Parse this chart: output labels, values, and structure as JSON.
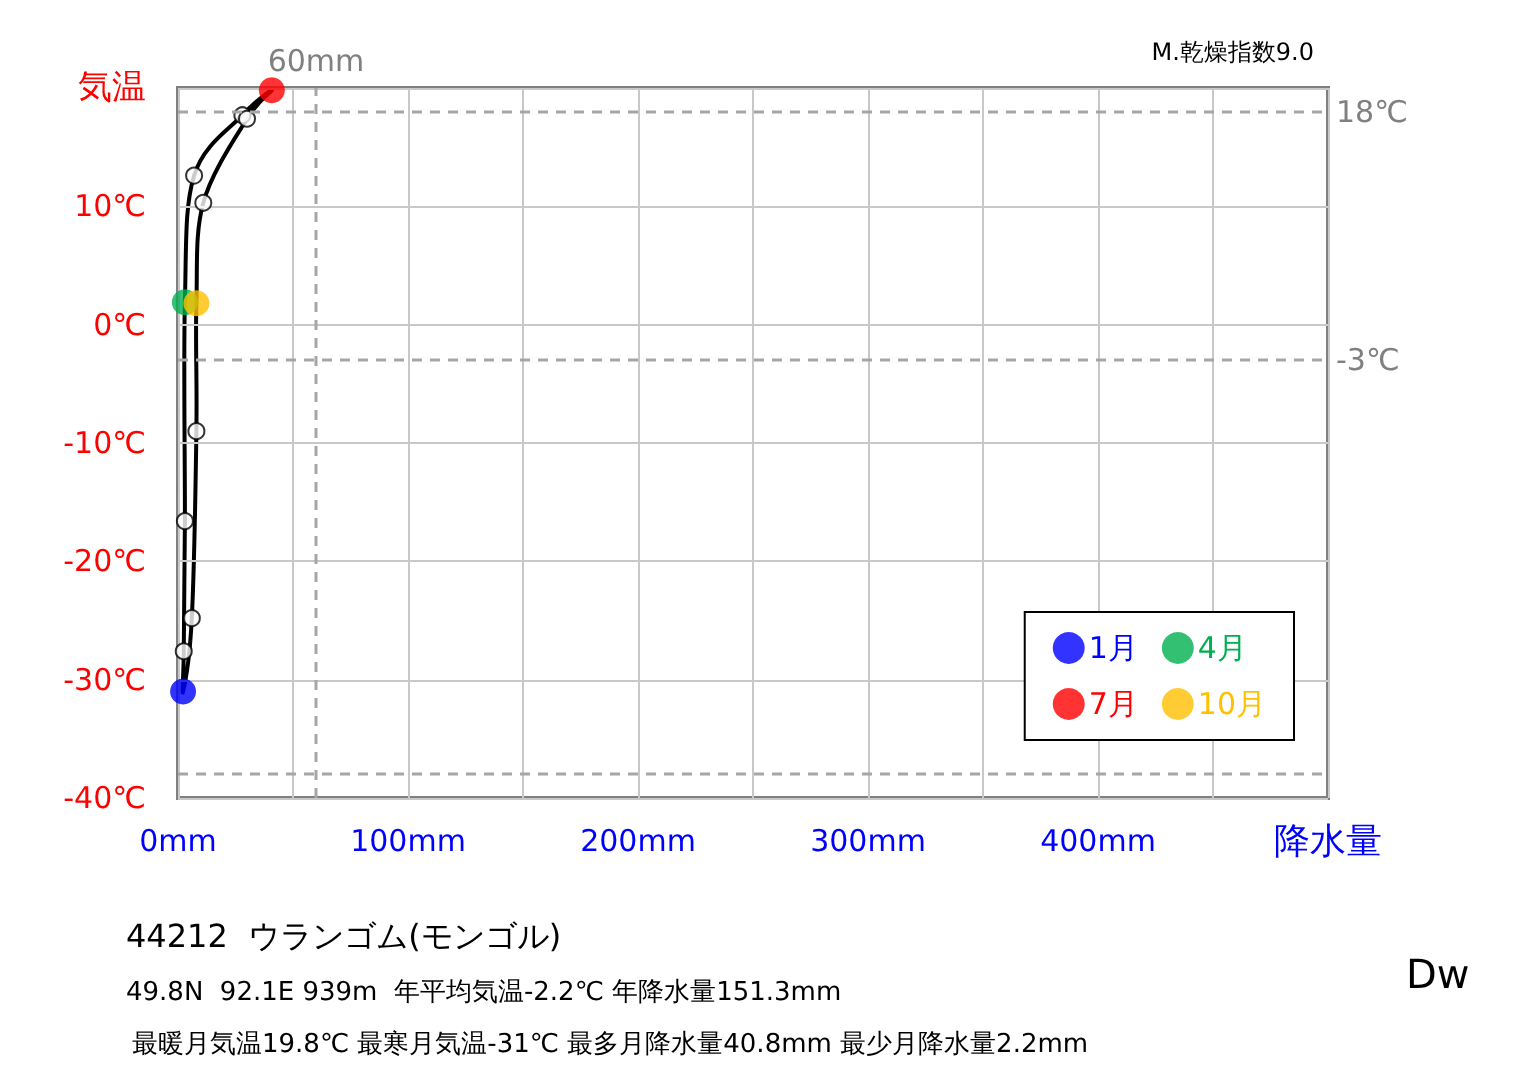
{
  "chart_data": {
    "type": "scatter",
    "title": "44212  ウランゴム(モンゴル)",
    "subtitle": "49.8N  92.1E 939m  年平均気温-2.2℃ 年降水量151.3mm",
    "annotations": [
      "最暖月気温19.8℃ 最寒月気温-31℃ 最多月降水量40.8mm 最少月降水量2.2mm",
      "M.乾燥指数9.0",
      "Dw"
    ],
    "xlabel": "降水量",
    "ylabel": "気温",
    "xlim": [
      0,
      500
    ],
    "xticks": [
      {
        "value": 0,
        "label": "0mm"
      },
      {
        "value": 50,
        "label": null
      },
      {
        "value": 100,
        "label": "100mm"
      },
      {
        "value": 150,
        "label": null
      },
      {
        "value": 200,
        "label": "200mm"
      },
      {
        "value": 250,
        "label": null
      },
      {
        "value": 300,
        "label": "300mm"
      },
      {
        "value": 350,
        "label": null
      },
      {
        "value": 400,
        "label": "400mm"
      },
      {
        "value": 450,
        "label": null
      },
      {
        "value": 500,
        "label": null
      }
    ],
    "ylim": [
      -40,
      20
    ],
    "yticks": [
      {
        "value": -40,
        "label": "-40℃"
      },
      {
        "value": -30,
        "label": "-30℃"
      },
      {
        "value": -20,
        "label": "-20℃"
      },
      {
        "value": -10,
        "label": "-10℃"
      },
      {
        "value": 0,
        "label": "0℃"
      },
      {
        "value": 10,
        "label": "10℃"
      },
      {
        "value": 20,
        "label": null
      }
    ],
    "grid": true,
    "legend": "bottom right",
    "marker": "circle",
    "series": [
      {
        "name": "1月",
        "color": "#0000ff",
        "x": [
          2.2
        ],
        "values": [
          -31
        ]
      },
      {
        "color": "#ffffff",
        "x": [
          2.5
        ],
        "values": [
          -27.6
        ]
      },
      {
        "color": "#ffffff",
        "x": [
          3
        ],
        "values": [
          -16.6
        ]
      },
      {
        "name": "4月",
        "color": "#00b050",
        "x": [
          3
        ],
        "values": [
          1.9
        ]
      },
      {
        "color": "#ffffff",
        "x": [
          7
        ],
        "values": [
          12.6
        ]
      },
      {
        "color": "#ffffff",
        "x": [
          28
        ],
        "values": [
          17.7
        ]
      },
      {
        "name": "7月",
        "color": "#ff0000",
        "x": [
          40.8
        ],
        "values": [
          19.8
        ]
      },
      {
        "color": "#ffffff",
        "x": [
          30
        ],
        "values": [
          17.4
        ]
      },
      {
        "color": "#ffffff",
        "x": [
          11
        ],
        "values": [
          10.3
        ]
      },
      {
        "name": "10月",
        "color": "#ffc000",
        "x": [
          8
        ],
        "values": [
          1.8
        ]
      },
      {
        "color": "#ffffff",
        "x": [
          8
        ],
        "values": [
          -9
        ]
      },
      {
        "color": "#ffffff",
        "x": [
          6
        ],
        "values": [
          -24.8
        ]
      }
    ],
    "ref_lines": [
      {
        "axis": "x",
        "value": 60,
        "label": "60mm",
        "color": "#a6a6a6",
        "line_style": "dashed"
      },
      {
        "axis": "y",
        "value": 18,
        "label": "18℃",
        "color": "#a6a6a6",
        "line_style": "dashed"
      },
      {
        "axis": "y",
        "value": -3,
        "label": "-3℃",
        "color": "#a6a6a6",
        "line_style": "dashed"
      },
      {
        "axis": "y",
        "value": -38,
        "color": "#a6a6a6",
        "line_style": "dashed"
      }
    ]
  }
}
